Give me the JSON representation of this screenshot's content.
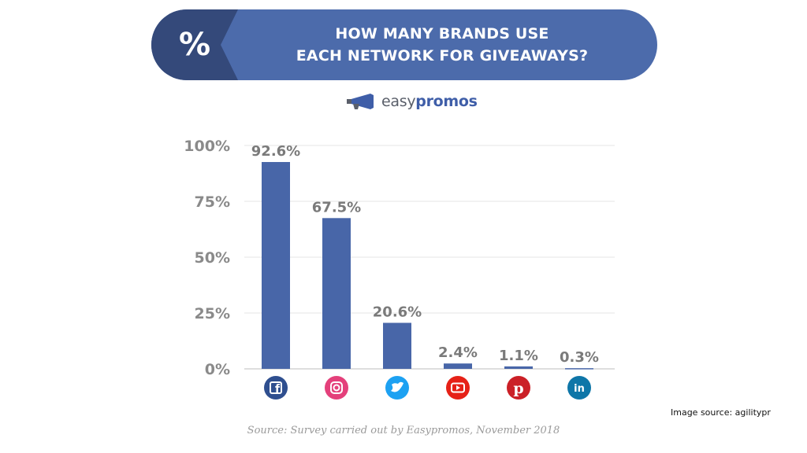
{
  "header": {
    "percent_symbol": "%",
    "title_line1": "HOW MANY BRANDS USE",
    "title_line2": "EACH NETWORK FOR GIVEAWAYS?"
  },
  "logo": {
    "text_light": "easy",
    "text_bold": "promos"
  },
  "colors": {
    "banner": "#4c6bab",
    "banner_dark": "#34497a",
    "bar": "#4866a8",
    "grid": "#e6e6e6"
  },
  "chart_data": {
    "type": "bar",
    "categories": [
      "Facebook",
      "Instagram",
      "Twitter",
      "YouTube",
      "Pinterest",
      "LinkedIn"
    ],
    "values": [
      92.6,
      67.5,
      20.6,
      2.4,
      1.1,
      0.3
    ],
    "data_labels": [
      "92.6%",
      "67.5%",
      "20.6%",
      "2.4%",
      "1.1%",
      "0.3%"
    ],
    "y_ticks": [
      "0%",
      "25%",
      "50%",
      "75%",
      "100%"
    ],
    "ylim": [
      0,
      100
    ],
    "grid": true,
    "category_icons": [
      {
        "name": "facebook-icon",
        "color": "#2f4f8f"
      },
      {
        "name": "instagram-icon",
        "color": "#e4407b"
      },
      {
        "name": "twitter-icon",
        "color": "#1da1f2"
      },
      {
        "name": "youtube-icon",
        "color": "#e62117"
      },
      {
        "name": "pinterest-icon",
        "color": "#cb2027"
      },
      {
        "name": "linkedin-icon",
        "color": "#0e76a8"
      }
    ]
  },
  "footer": {
    "source": "Source: Survey carried out by Easypromos, November 2018",
    "image_credit": "Image source: agilitypr"
  }
}
